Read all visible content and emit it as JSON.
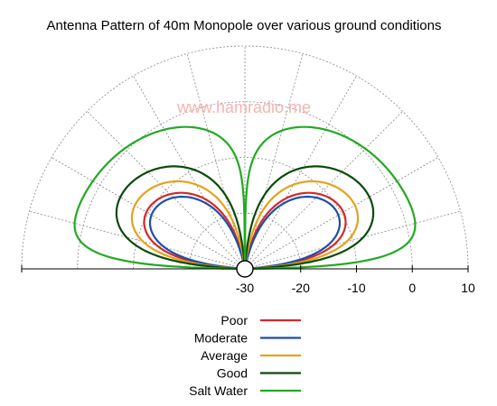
{
  "chart_data": {
    "type": "polar",
    "title": "Antenna Pattern of 40m Monopole over various ground conditions",
    "watermark": "www.hamradio.me",
    "radial_ticks": [
      "-30",
      "-20",
      "-10",
      "0",
      "10"
    ],
    "radial_tick_values": [
      -30,
      -20,
      -10,
      0,
      10
    ],
    "radial_range": [
      -30,
      10
    ],
    "angular_range_deg": [
      0,
      180
    ],
    "angular_grid_step_deg": 15,
    "grid": true,
    "legend_position": "bottom-center",
    "series": [
      {
        "name": "Poor",
        "color": "#d42a2a",
        "peak_gain_dbi": -9.6,
        "peak_elevation_deg": 22,
        "pattern_n": 1.55
      },
      {
        "name": "Moderate",
        "color": "#1f4fa8",
        "peak_gain_dbi": -10.6,
        "peak_elevation_deg": 25,
        "pattern_n": 1.7
      },
      {
        "name": "Average",
        "color": "#e6a21b",
        "peak_gain_dbi": -7.2,
        "peak_elevation_deg": 21,
        "pattern_n": 1.4
      },
      {
        "name": "Good",
        "color": "#0a4a0a",
        "peak_gain_dbi": -4.2,
        "peak_elevation_deg": 20,
        "pattern_n": 1.25
      },
      {
        "name": "Salt Water",
        "color": "#22aa22",
        "peak_gain_dbi": 1.8,
        "peak_elevation_deg": 7,
        "pattern_n": 0.55
      }
    ]
  }
}
